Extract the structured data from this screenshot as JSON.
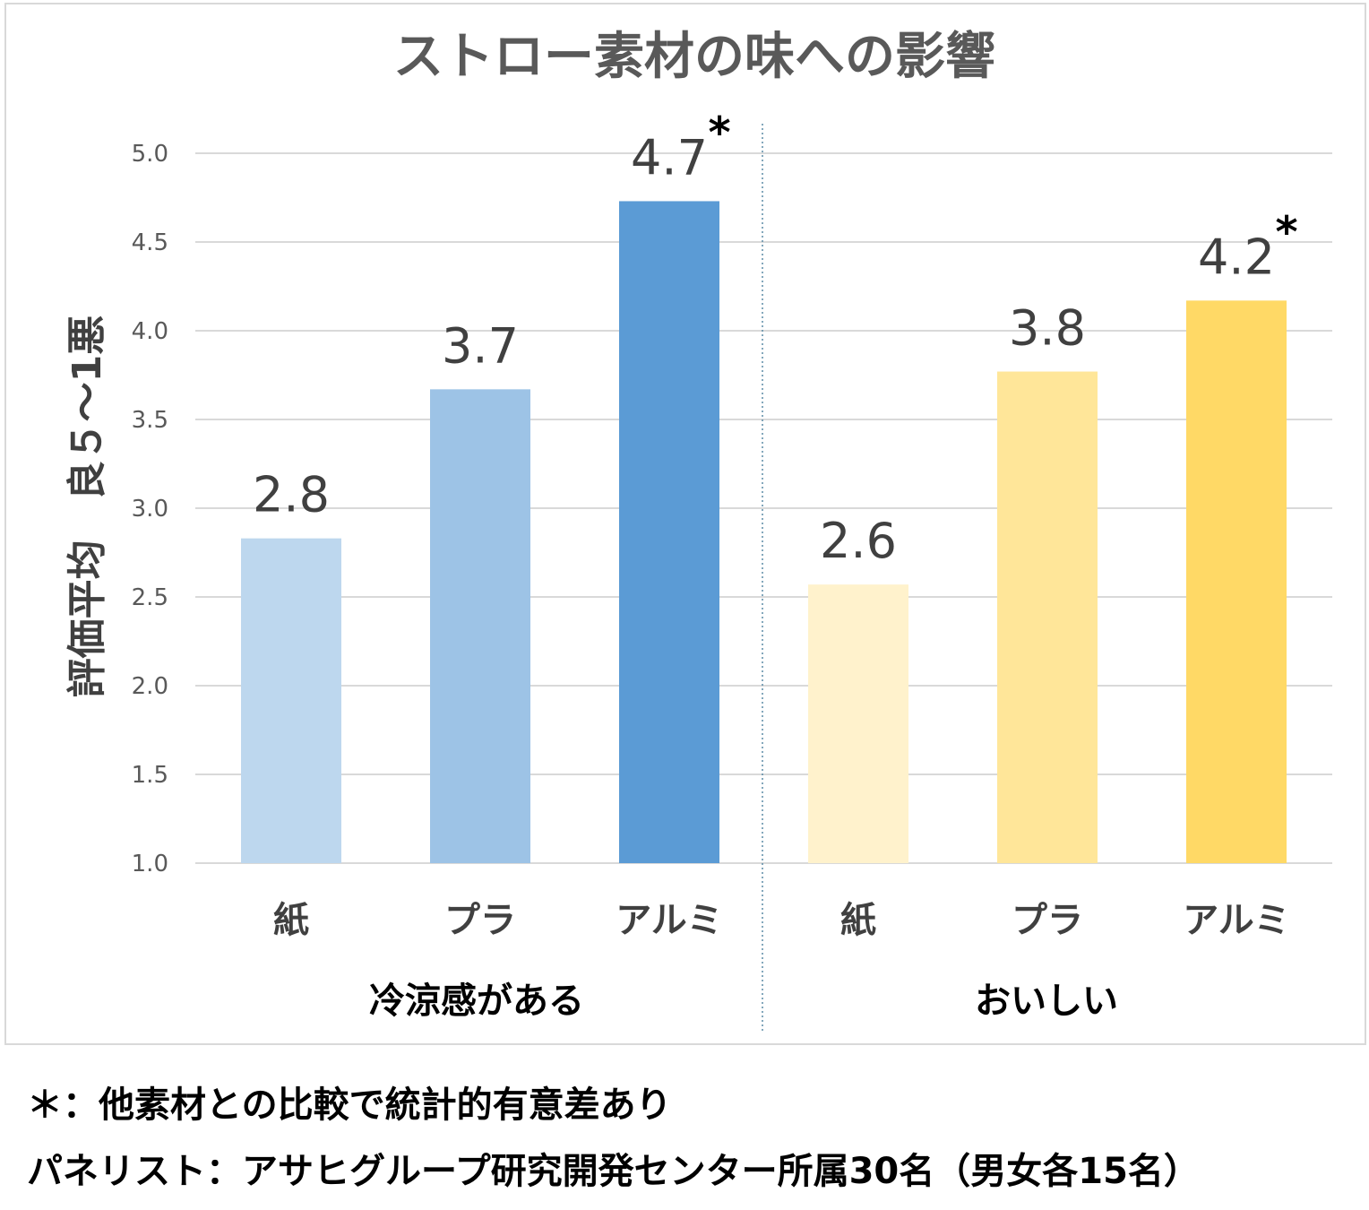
{
  "chart_data": {
    "type": "bar",
    "title": "ストロー素材の味への影響",
    "ylabel": "評価平均　良５～1悪",
    "ylim": [
      1.0,
      5.0
    ],
    "yticks": [
      "5.0",
      "4.5",
      "4.0",
      "3.5",
      "3.0",
      "2.5",
      "2.0",
      "1.5",
      "1.0"
    ],
    "grid": true,
    "groups": [
      {
        "name": "冷涼感がある",
        "categories": [
          "紙",
          "プラ",
          "アルミ"
        ],
        "values": [
          2.83,
          3.67,
          4.73
        ],
        "labels": [
          "2.8",
          "3.7",
          "4.7"
        ],
        "significant": [
          false,
          false,
          true
        ],
        "colors": [
          "#BDD7EE",
          "#9DC3E6",
          "#5B9BD5"
        ]
      },
      {
        "name": "おいしい",
        "categories": [
          "紙",
          "プラ",
          "アルミ"
        ],
        "values": [
          2.57,
          3.77,
          4.17
        ],
        "labels": [
          "2.6",
          "3.8",
          "4.2"
        ],
        "significant": [
          false,
          false,
          true
        ],
        "colors": [
          "#FFF2CC",
          "#FFE699",
          "#FFD966"
        ]
      }
    ],
    "significance_mark": "*"
  },
  "footnotes": {
    "line1": "＊：他素材との比較で統計的有意差あり",
    "line2": "パネリスト：アサヒグループ研究開発センター所属30名（男女各15名）"
  }
}
